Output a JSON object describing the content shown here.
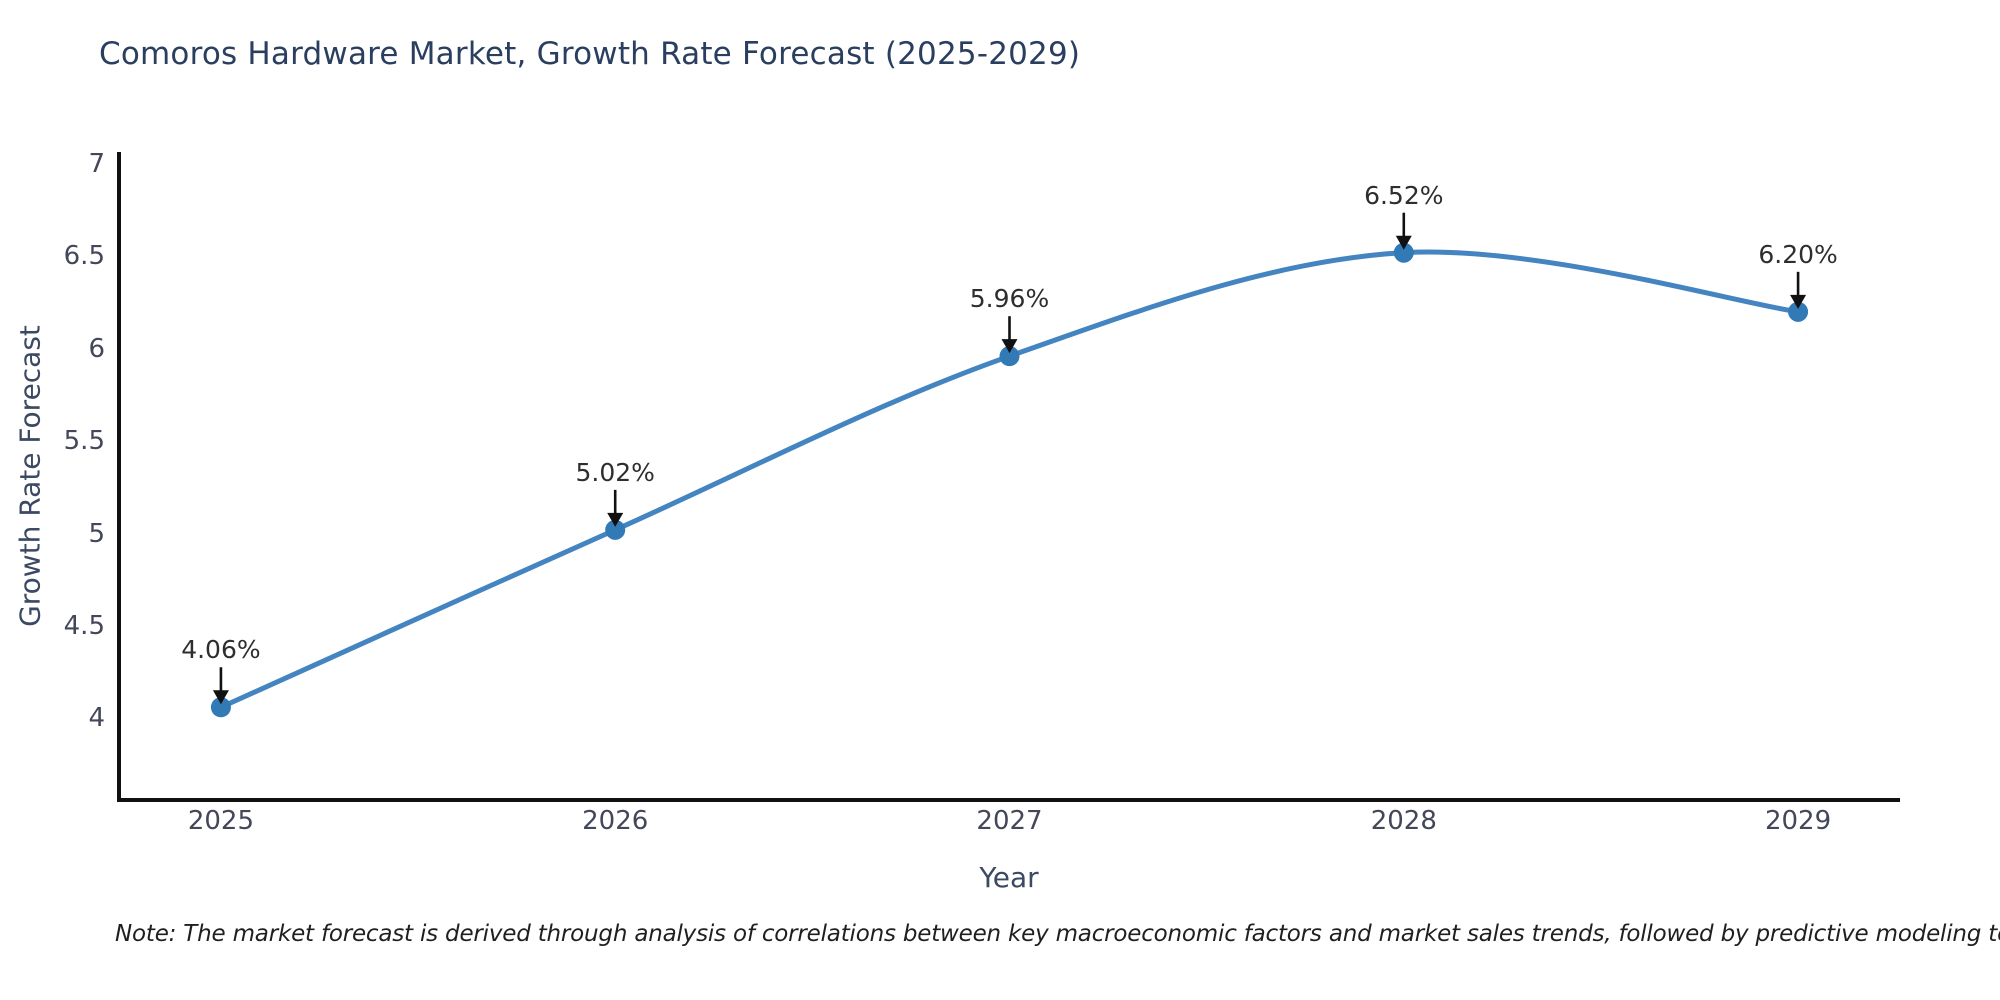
{
  "chart_data": {
    "type": "line",
    "title": "Comoros Hardware Market, Growth Rate Forecast (2025-2029)",
    "xlabel": "Year",
    "ylabel": "Growth Rate Forecast",
    "x": [
      2025,
      2026,
      2027,
      2028,
      2029
    ],
    "xtick_labels": [
      "2025",
      "2026",
      "2027",
      "2028",
      "2029"
    ],
    "series": [
      {
        "name": "Growth Rate Forecast",
        "values": [
          4.06,
          5.02,
          5.96,
          6.52,
          6.2
        ]
      }
    ],
    "point_labels": [
      "4.06%",
      "5.02%",
      "5.96%",
      "6.52%",
      "6.20%"
    ],
    "yticks": [
      4,
      4.5,
      5,
      5.5,
      6,
      6.5,
      7
    ],
    "ylim": [
      3.558,
      7.065
    ],
    "xlim": [
      2024.7415,
      2029.2585
    ],
    "grid": false,
    "legend": "none",
    "line_shape": "spline",
    "annotations": "black down-arrows from each percentage label to its data point",
    "colors": {
      "line": "#4384c1",
      "marker": "#327ab5",
      "axis": "#111111",
      "annotation_arrow": "#111111",
      "title_text": "#2a3f5f",
      "tick_text": "#44475a"
    }
  },
  "note": {
    "text": "Note: The market forecast is derived through analysis of correlations between key macroeconomic factors and market sales trends, followed by predictive modeling to project future sales"
  }
}
